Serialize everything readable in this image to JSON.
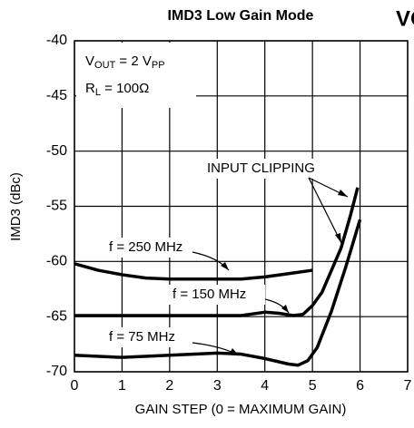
{
  "chart_data": {
    "type": "line",
    "title": "IMD3 Low Gain Mode",
    "corner_text": "VO",
    "xlabel": "GAIN STEP (0 = MAXIMUM GAIN)",
    "ylabel": "IMD3 (dBc)",
    "xlim": [
      0,
      7
    ],
    "xticks": [
      0,
      1,
      2,
      3,
      4,
      5,
      6,
      7
    ],
    "ylim": [
      -70,
      -40
    ],
    "yticks": [
      -40,
      -45,
      -50,
      -55,
      -60,
      -65,
      -70
    ],
    "grid": true,
    "annotations": {
      "vout": [
        "V",
        "OUT",
        " = 2 V",
        "PP"
      ],
      "rl": [
        "R",
        "L",
        " = 100Ω"
      ],
      "clipping": "INPUT CLIPPING"
    },
    "series": [
      {
        "name": "f = 250 MHz",
        "color": "#000000",
        "x": [
          0,
          0.5,
          1,
          1.5,
          2,
          2.5,
          3,
          3.5,
          4,
          4.5,
          5
        ],
        "values": [
          -60.2,
          -60.8,
          -61.2,
          -61.5,
          -61.6,
          -61.6,
          -61.6,
          -61.6,
          -61.4,
          -61.1,
          -60.8
        ]
      },
      {
        "name": "f = 150 MHz",
        "color": "#000000",
        "x": [
          0,
          1,
          2,
          3,
          3.5,
          4,
          4.3,
          4.6,
          4.8,
          5,
          5.2,
          5.4,
          5.6,
          5.8,
          5.95
        ],
        "values": [
          -64.9,
          -64.9,
          -64.9,
          -64.9,
          -64.9,
          -64.6,
          -64.7,
          -64.9,
          -64.8,
          -64,
          -62.8,
          -60.8,
          -58.8,
          -55.8,
          -53.3
        ]
      },
      {
        "name": "f = 75 MHz",
        "color": "#000000",
        "x": [
          0,
          1,
          2,
          3,
          3.5,
          4,
          4.5,
          4.7,
          4.9,
          5.1,
          5.4,
          5.7,
          6
        ],
        "values": [
          -68.5,
          -68.7,
          -68.5,
          -68.3,
          -68.4,
          -68.8,
          -69.3,
          -69.4,
          -69,
          -67.8,
          -64.5,
          -60.5,
          -56.2
        ]
      }
    ]
  }
}
